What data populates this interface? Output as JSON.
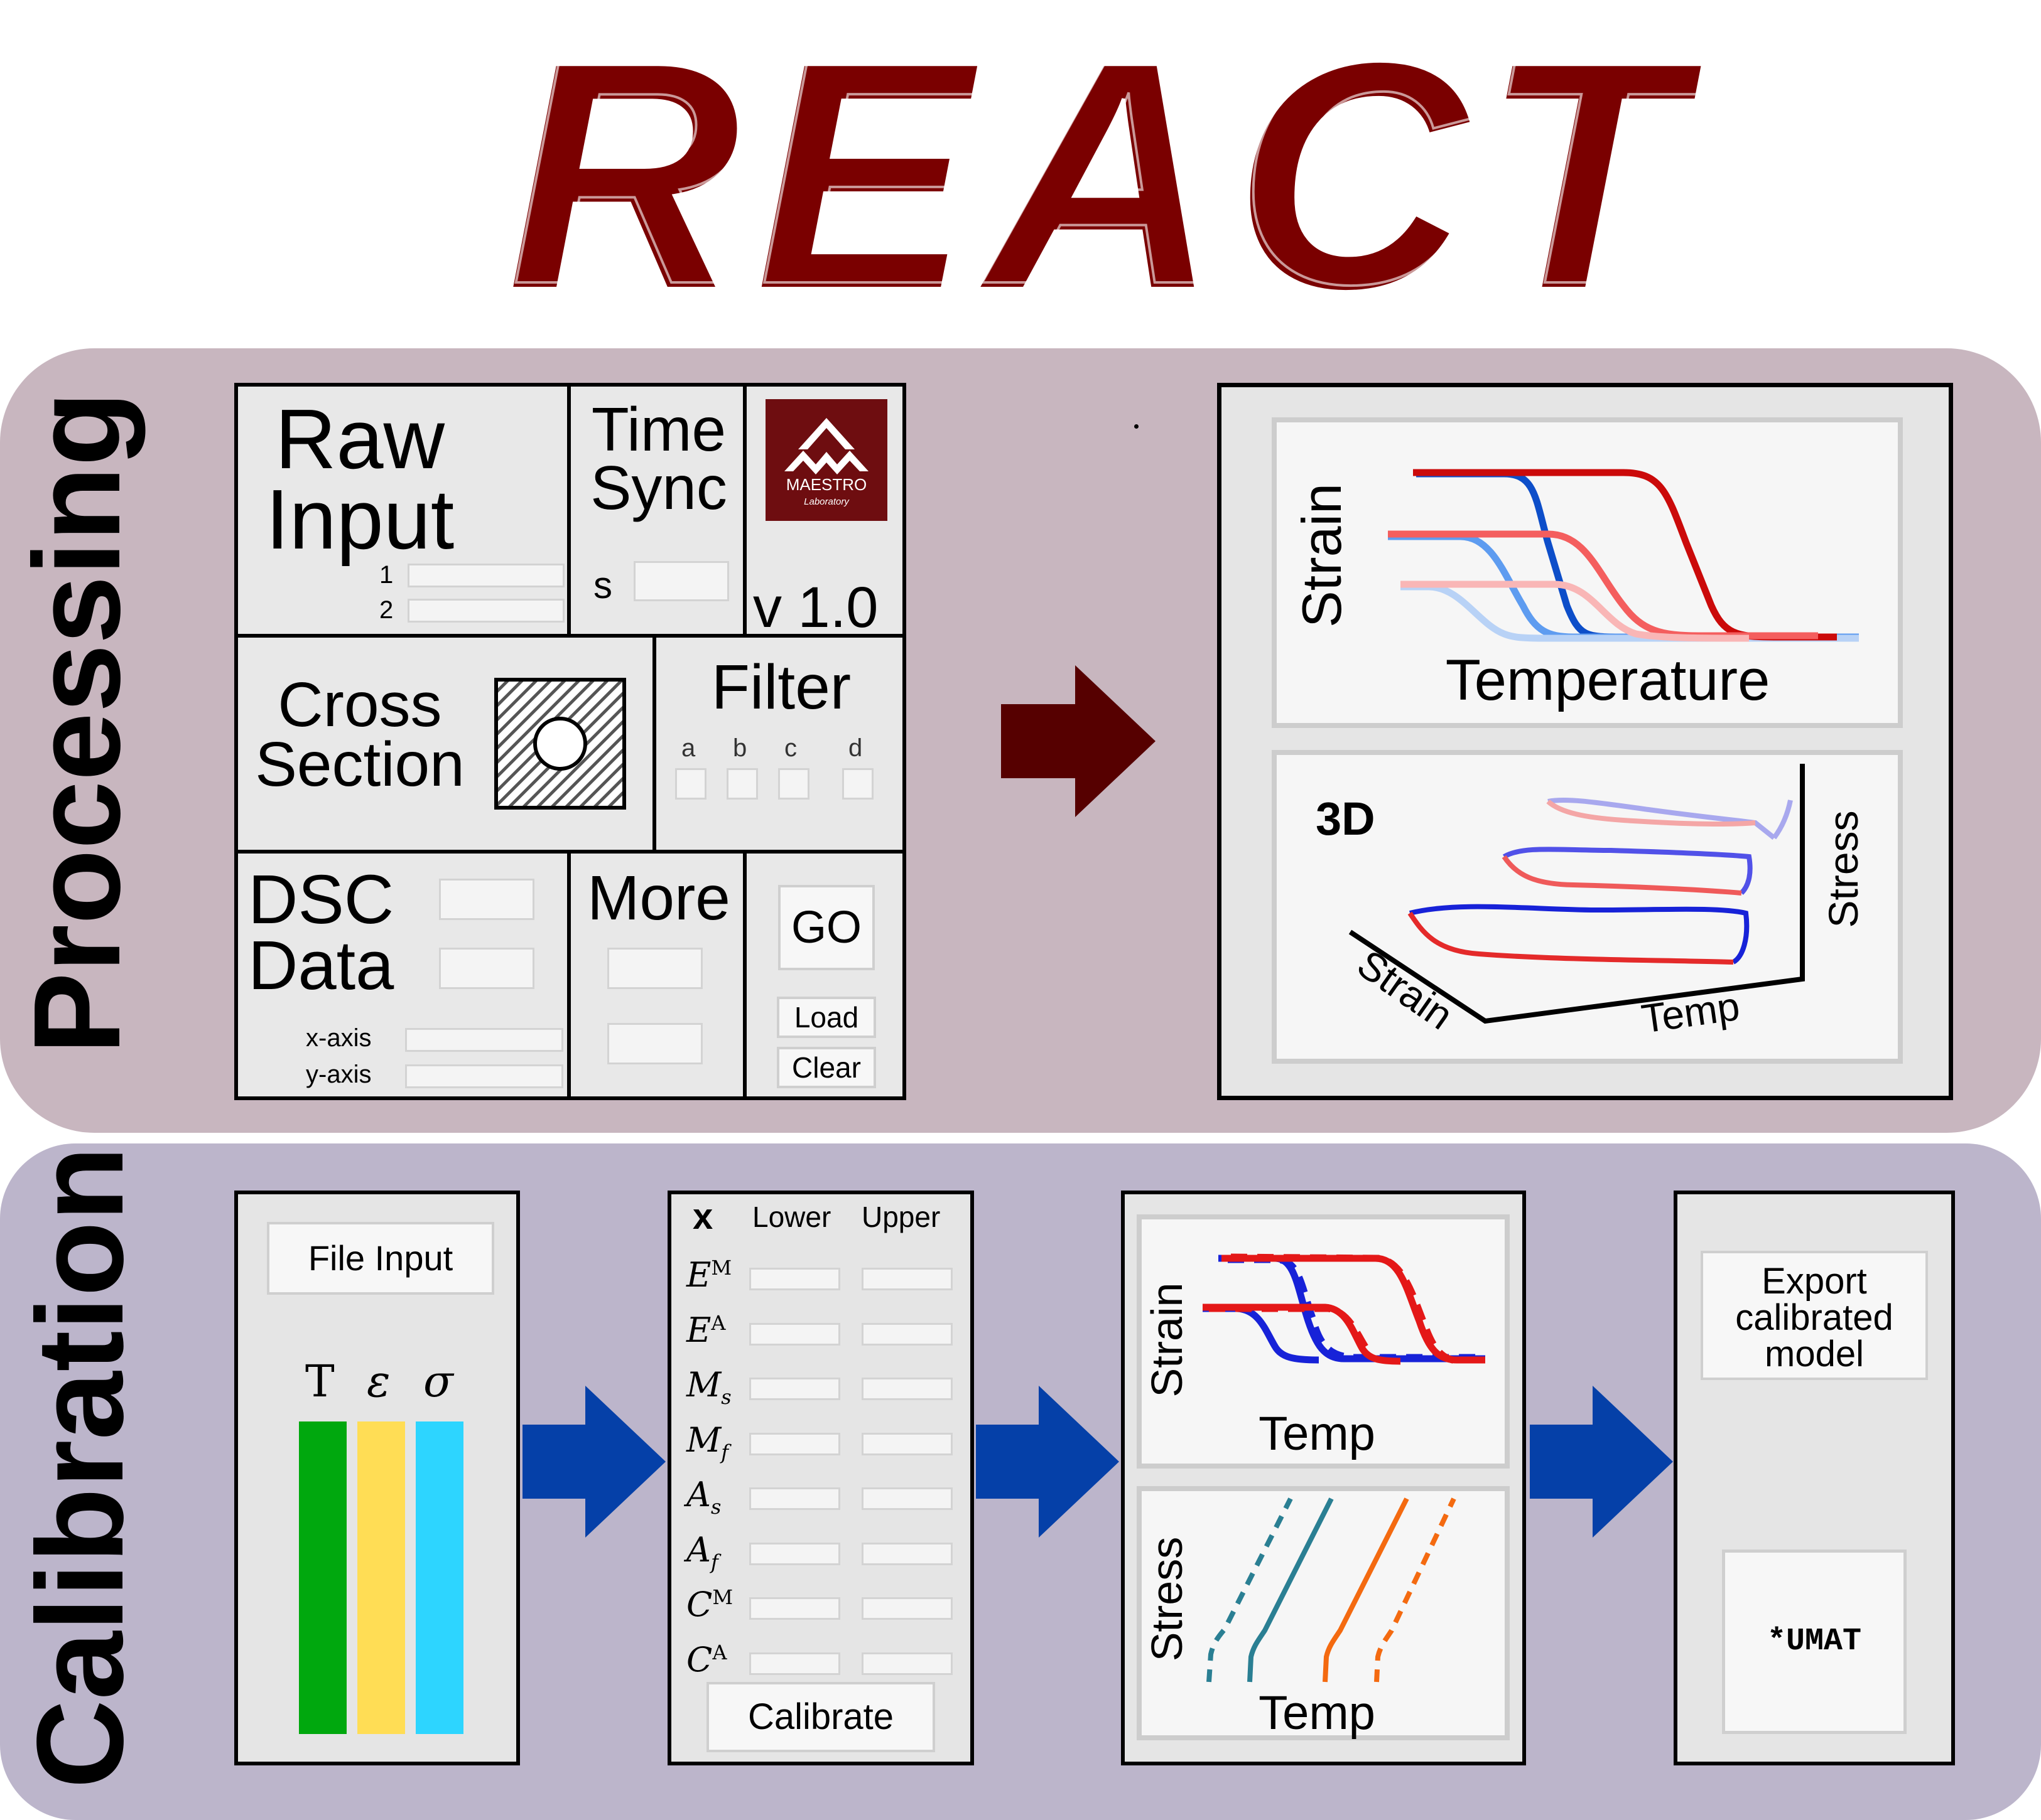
{
  "title": "REACT",
  "colors": {
    "maroon": "#7a0000",
    "arrow_maroon": "#560000",
    "arrow_blue": "#0540a8",
    "processing_bg": "#c8b6bf",
    "calibration_bg": "#bcb5cb"
  },
  "processing": {
    "label": "Processing",
    "raw_input": {
      "title_1": "Raw",
      "title_2": "Input",
      "field_1": "1",
      "field_2": "2"
    },
    "time_sync": {
      "title_1": "Time",
      "title_2": "Sync",
      "field": "s"
    },
    "logo": {
      "name": "MAESTRO",
      "subtitle": "Laboratory"
    },
    "version": "v 1.0",
    "cross_section": {
      "title_1": "Cross",
      "title_2": "Section"
    },
    "filter": {
      "title": "Filter",
      "options": [
        "a",
        "b",
        "c",
        "d"
      ]
    },
    "dsc": {
      "title_1": "DSC",
      "title_2": "Data",
      "x_axis": "x-axis",
      "y_axis": "y-axis"
    },
    "more": {
      "title": "More"
    },
    "buttons": {
      "go": "GO",
      "load": "Load",
      "clear": "Clear"
    },
    "plot_top": {
      "ylabel": "Strain",
      "xlabel": "Temperature"
    },
    "plot_3d": {
      "title": "3D",
      "axis_strain": "Strain",
      "axis_temp": "Temp",
      "axis_stress": "Stress"
    }
  },
  "calibration": {
    "label": "Calibration",
    "file_input": {
      "button": "File Input",
      "columns": [
        {
          "symbol": "T",
          "color": "#00a80e"
        },
        {
          "symbol": "ε",
          "color": "#ffdd55"
        },
        {
          "symbol": "σ",
          "color": "#2dd5ff"
        }
      ]
    },
    "params": {
      "header_x": "x",
      "header_lower": "Lower",
      "header_upper": "Upper",
      "rows": [
        {
          "base": "E",
          "sup": "M",
          "sub": ""
        },
        {
          "base": "E",
          "sup": "A",
          "sub": ""
        },
        {
          "base": "M",
          "sup": "",
          "sub": "s"
        },
        {
          "base": "M",
          "sup": "",
          "sub": "f"
        },
        {
          "base": "A",
          "sup": "",
          "sub": "s"
        },
        {
          "base": "A",
          "sup": "",
          "sub": "f"
        },
        {
          "base": "C",
          "sup": "M",
          "sub": ""
        },
        {
          "base": "C",
          "sup": "A",
          "sub": ""
        }
      ],
      "button": "Calibrate"
    },
    "plot_strain": {
      "ylabel": "Strain",
      "xlabel": "Temp"
    },
    "plot_stress": {
      "ylabel": "Stress",
      "xlabel": "Temp"
    },
    "export": {
      "button_1": "Export",
      "button_2": "calibrated",
      "button_3": "model",
      "umat": "*UMAT"
    }
  }
}
